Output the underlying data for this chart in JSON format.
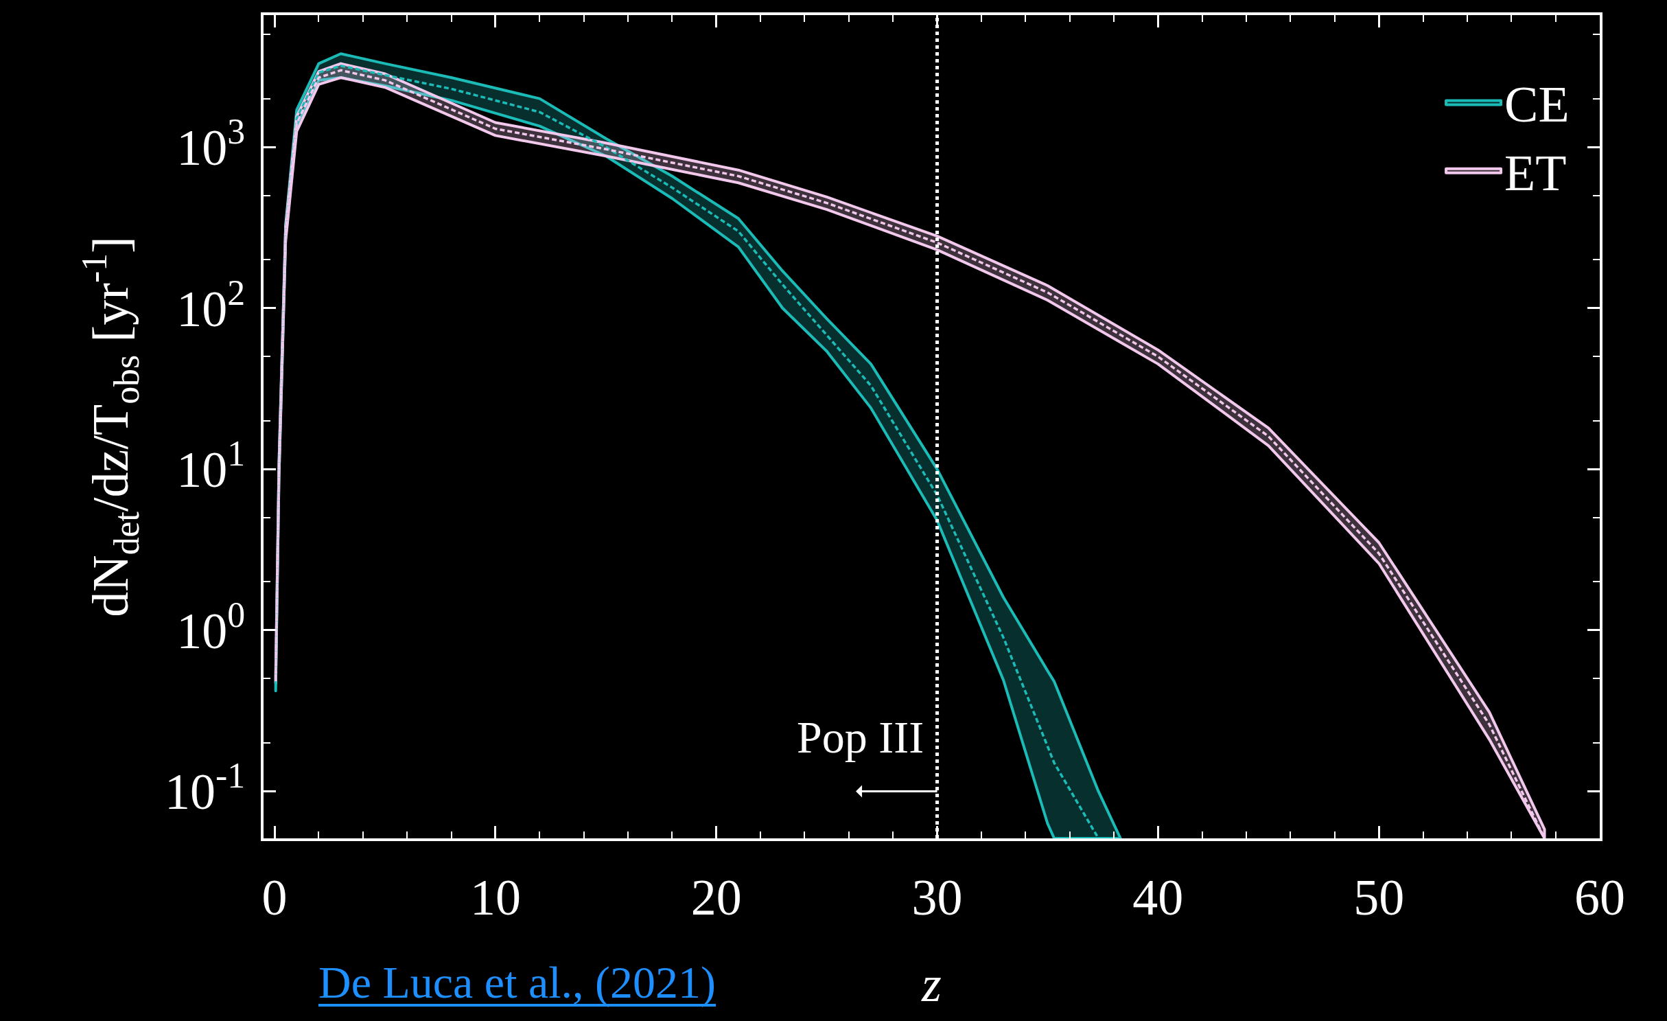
{
  "chart_data": {
    "type": "line",
    "xlabel": "z",
    "ylabel": "dN$_{det}$/dz/T$_{obs}$ [yr$^{-1}$]",
    "log": "y",
    "grid": false,
    "legend": "top right",
    "marker": "none",
    "xlim": [
      -0.5,
      60
    ],
    "xticks": [
      0,
      10,
      20,
      30,
      40,
      50,
      60
    ],
    "ylim": [
      0.051,
      6600
    ],
    "yticks": [
      {
        "value": 0.1,
        "label": "10$^{-1}$"
      },
      {
        "value": 1,
        "label": "10$^{0}$"
      },
      {
        "value": 10,
        "label": "10$^{1}$"
      },
      {
        "value": 100,
        "label": "10$^{2}$"
      },
      {
        "value": 1000,
        "label": "10$^{3}$"
      }
    ],
    "series": [
      {
        "name": "CE",
        "color": "#1bbcb8",
        "line_style": "dashed",
        "x": [
          0.05,
          0.2,
          0.5,
          1,
          2,
          3,
          5,
          8,
          12,
          15,
          18,
          21,
          23,
          25,
          27,
          30,
          33,
          35,
          35.3,
          37.3,
          38.3
        ],
        "values": [
          0.45,
          10,
          300,
          1500,
          2900,
          3200,
          2800,
          2300,
          1650,
          1000,
          560,
          300,
          140,
          68,
          33,
          6.9,
          0.9,
          0.19,
          0.15,
          0.051,
          null
        ],
        "lower": [
          0.42,
          9,
          270,
          1350,
          2600,
          2700,
          2400,
          1950,
          1350,
          880,
          480,
          240,
          100,
          54,
          24,
          4.8,
          0.49,
          0.063,
          0.051,
          0.051,
          0.051
        ],
        "upper": [
          0.48,
          11,
          330,
          1700,
          3300,
          3800,
          3300,
          2700,
          2000,
          1130,
          660,
          360,
          170,
          86,
          45,
          10,
          1.6,
          0.56,
          0.48,
          0.1,
          0.051
        ]
      },
      {
        "name": "ET",
        "color": "#f2c8ec",
        "line_style": "dashed",
        "x": [
          0.05,
          0.2,
          0.5,
          1,
          2,
          3,
          5,
          10,
          15,
          21,
          25,
          30,
          35,
          40,
          45,
          50,
          55,
          57.5
        ],
        "values": [
          0.5,
          10,
          290,
          1400,
          2700,
          3000,
          2600,
          1300,
          970,
          660,
          450,
          255,
          125,
          50,
          16,
          3,
          0.26,
          0.051
        ],
        "lower": [
          0.47,
          9,
          260,
          1250,
          2450,
          2700,
          2350,
          1180,
          880,
          600,
          410,
          230,
          112,
          45,
          14,
          2.6,
          0.21,
          0.051
        ],
        "upper": [
          0.53,
          11,
          320,
          1550,
          2950,
          3300,
          2850,
          1420,
          1060,
          720,
          490,
          280,
          138,
          55,
          18,
          3.5,
          0.31,
          0.058
        ]
      }
    ],
    "ref_lines": [
      {
        "axis": "x",
        "value": 30,
        "color": "#ffffff",
        "line_style": "dotted"
      }
    ],
    "annotations": [
      {
        "text": "Pop III",
        "x": 30,
        "y": 0.1
      },
      "De Luca et al., (2021)"
    ]
  }
}
